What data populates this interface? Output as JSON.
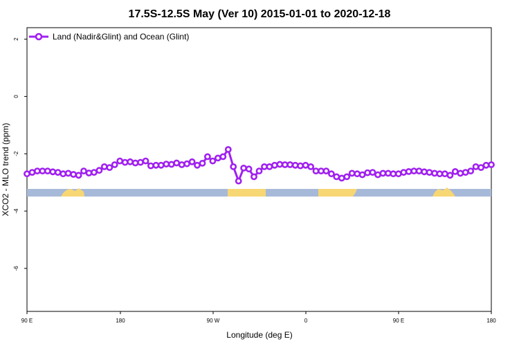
{
  "chart_data": {
    "type": "line",
    "title": "17.5S-12.5S May (Ver 10)   2015-01-01 to 2020-12-18",
    "xlabel": "Longitude (deg E)",
    "ylabel": "XCO2 - MLO trend (ppm)",
    "xlim": [
      90,
      450
    ],
    "ylim": [
      -7.5,
      2.4
    ],
    "x_ticks": [
      90,
      180,
      270,
      360,
      450,
      540
    ],
    "x_ticks_all": [
      {
        "value": 90,
        "label": "90 E"
      },
      {
        "value": 162,
        "label": "180"
      },
      {
        "value": 234,
        "label": "90 W"
      },
      {
        "value": 306,
        "label": "0"
      },
      {
        "value": 378,
        "label": "90 E"
      },
      {
        "value": 450,
        "label": "180"
      }
    ],
    "y_ticks": [
      {
        "value": 2,
        "label": "2"
      },
      {
        "value": 0,
        "label": "0"
      },
      {
        "value": -2,
        "label": "-2"
      },
      {
        "value": -4,
        "label": "-4"
      },
      {
        "value": -6,
        "label": "-6"
      }
    ],
    "legend": {
      "position": "top-left"
    },
    "series": [
      {
        "name": "Land (Nadir&Glint) and Ocean (Glint)",
        "color": "#a020f0",
        "x": [
          90,
          94,
          98,
          102,
          106,
          110,
          114,
          118,
          122,
          126,
          130,
          134,
          138,
          142,
          146,
          150,
          154,
          158,
          162,
          166,
          170,
          174,
          178,
          182,
          186,
          190,
          194,
          198,
          202,
          206,
          210,
          214,
          218,
          222,
          226,
          230,
          234,
          238,
          242,
          246,
          250,
          254,
          258,
          262,
          266,
          270,
          274,
          278,
          282,
          286,
          290,
          294,
          298,
          302,
          306,
          310,
          314,
          318,
          322,
          326,
          330,
          334,
          338,
          342,
          346,
          350,
          354,
          358,
          362,
          366,
          370,
          374,
          378,
          382,
          386,
          390,
          394,
          398,
          402,
          406,
          410,
          414,
          418,
          422,
          426,
          430,
          434,
          438,
          442,
          446,
          450
        ],
        "y": [
          -2.7,
          -2.65,
          -2.6,
          -2.6,
          -2.6,
          -2.63,
          -2.65,
          -2.7,
          -2.68,
          -2.72,
          -2.75,
          -2.6,
          -2.67,
          -2.65,
          -2.58,
          -2.45,
          -2.48,
          -2.38,
          -2.25,
          -2.3,
          -2.28,
          -2.32,
          -2.3,
          -2.25,
          -2.42,
          -2.4,
          -2.4,
          -2.36,
          -2.37,
          -2.32,
          -2.38,
          -2.35,
          -2.28,
          -2.4,
          -2.33,
          -2.1,
          -2.25,
          -2.15,
          -2.1,
          -1.85,
          -2.45,
          -2.95,
          -2.5,
          -2.53,
          -2.8,
          -2.6,
          -2.45,
          -2.45,
          -2.4,
          -2.37,
          -2.38,
          -2.38,
          -2.4,
          -2.42,
          -2.4,
          -2.45,
          -2.6,
          -2.6,
          -2.6,
          -2.7,
          -2.8,
          -2.85,
          -2.8,
          -2.68,
          -2.7,
          -2.73,
          -2.66,
          -2.65,
          -2.73,
          -2.68,
          -2.68,
          -2.7,
          -2.7,
          -2.65,
          -2.62,
          -2.6,
          -2.6,
          -2.63,
          -2.65,
          -2.68,
          -2.7,
          -2.7,
          -2.75,
          -2.62,
          -2.68,
          -2.65,
          -2.6,
          -2.45,
          -2.48,
          -2.4,
          -2.38
        ]
      }
    ]
  }
}
